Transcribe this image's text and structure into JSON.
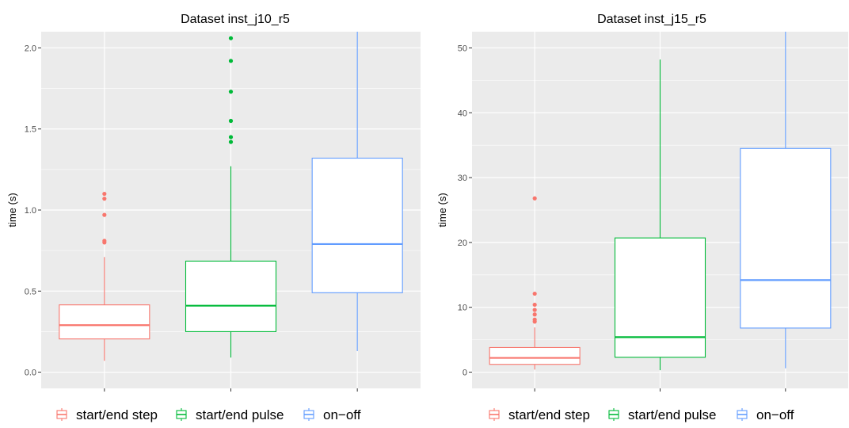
{
  "chart_data": [
    {
      "type": "box",
      "title": "Dataset inst_j10_r5",
      "xlabel": "",
      "ylabel": "time (s)",
      "ylim": [
        -0.1,
        2.1
      ],
      "yticks": [
        0.0,
        0.5,
        1.0,
        1.5,
        2.0
      ],
      "ytick_labels": [
        "0.0",
        "0.5",
        "1.0",
        "1.5",
        "2.0"
      ],
      "grid": true,
      "series": [
        {
          "name": "start/end step",
          "color": "#F8766D",
          "whisker_low": 0.07,
          "q1": 0.205,
          "median": 0.29,
          "q3": 0.415,
          "whisker_high": 0.71,
          "outliers": [
            0.8,
            0.81,
            0.97,
            1.07,
            1.1
          ]
        },
        {
          "name": "start/end pulse",
          "color": "#00BA38",
          "whisker_low": 0.09,
          "q1": 0.25,
          "median": 0.41,
          "q3": 0.685,
          "whisker_high": 1.27,
          "outliers": [
            1.42,
            1.45,
            1.55,
            1.73,
            1.92,
            2.06
          ]
        },
        {
          "name": "on−off",
          "color": "#619CFF",
          "whisker_low": 0.13,
          "q1": 0.49,
          "median": 0.79,
          "q3": 1.32,
          "whisker_high": 2.1,
          "outliers": []
        }
      ],
      "legend_position": "bottom"
    },
    {
      "type": "box",
      "title": "Dataset inst_j15_r5",
      "xlabel": "",
      "ylabel": "time (s)",
      "ylim": [
        -2.5,
        52.5
      ],
      "yticks": [
        0,
        10,
        20,
        30,
        40,
        50
      ],
      "ytick_labels": [
        "0",
        "10",
        "20",
        "30",
        "40",
        "50"
      ],
      "grid": true,
      "series": [
        {
          "name": "start/end step",
          "color": "#F8766D",
          "whisker_low": 0.4,
          "q1": 1.2,
          "median": 2.2,
          "q3": 3.8,
          "whisker_high": 6.9,
          "outliers": [
            7.8,
            8.1,
            8.9,
            9.6,
            10.4,
            12.1,
            26.8
          ]
        },
        {
          "name": "start/end pulse",
          "color": "#00BA38",
          "whisker_low": 0.3,
          "q1": 2.3,
          "median": 5.4,
          "q3": 20.7,
          "whisker_high": 48.2,
          "outliers": []
        },
        {
          "name": "on−off",
          "color": "#619CFF",
          "whisker_low": 0.6,
          "q1": 6.8,
          "median": 14.2,
          "q3": 34.5,
          "whisker_high": 52.5,
          "outliers": []
        }
      ],
      "legend_position": "bottom"
    }
  ]
}
